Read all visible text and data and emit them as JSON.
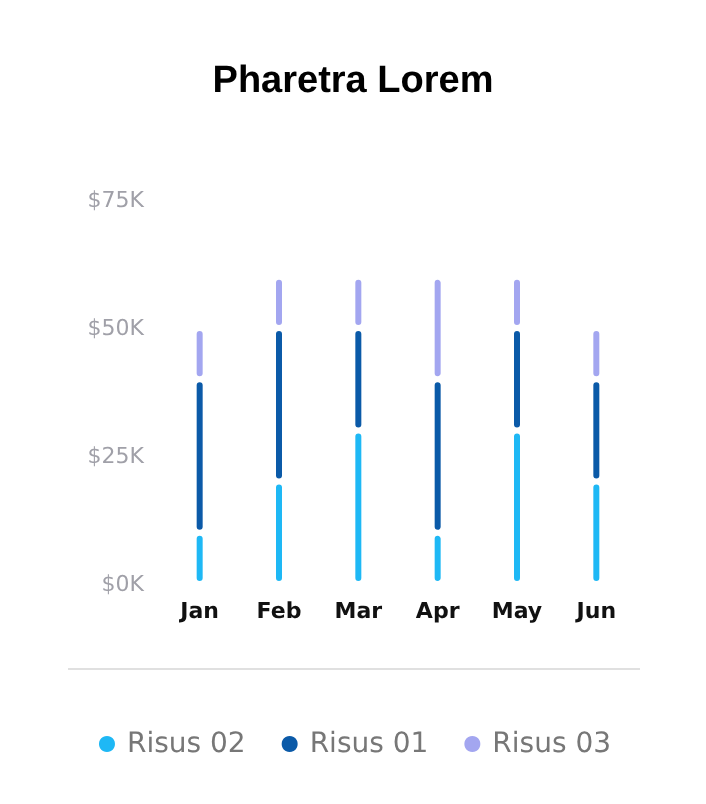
{
  "chart_data": {
    "type": "bar",
    "title": "Pharetra Lorem",
    "stacked": true,
    "categories": [
      "Jan",
      "Feb",
      "Mar",
      "Apr",
      "May",
      "Jun"
    ],
    "series": [
      {
        "name": "Risus 02",
        "color": "#1eb8f5",
        "values": [
          10,
          20,
          30,
          10,
          30,
          20
        ]
      },
      {
        "name": "Risus 01",
        "color": "#0b5aa8",
        "values": [
          30,
          30,
          20,
          30,
          20,
          20
        ]
      },
      {
        "name": "Risus 03",
        "color": "#a3a6f0",
        "values": [
          10,
          10,
          10,
          20,
          10,
          10
        ]
      }
    ],
    "ylim": [
      0,
      75
    ],
    "yticks": [
      {
        "value": 0,
        "label": "$0K"
      },
      {
        "value": 25,
        "label": "$25K"
      },
      {
        "value": 50,
        "label": "$50K"
      },
      {
        "value": 75,
        "label": "$75K"
      }
    ],
    "grid": false,
    "legend": "bottom"
  }
}
